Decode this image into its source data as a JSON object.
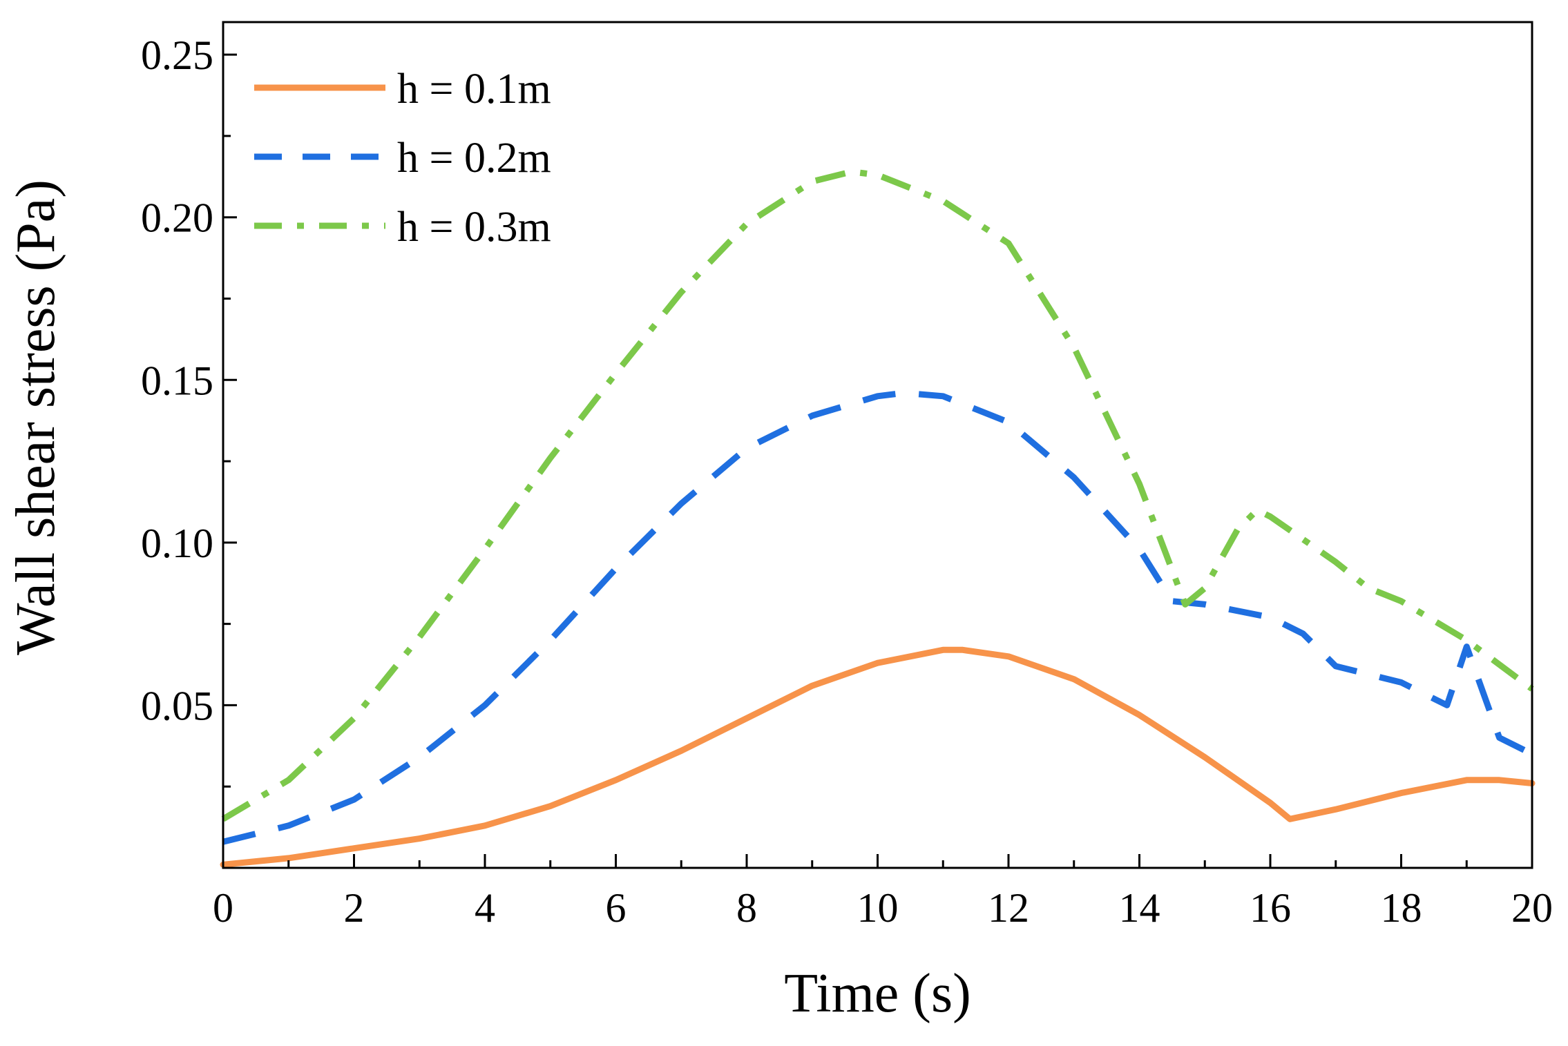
{
  "chart_data": {
    "type": "line",
    "title": "",
    "xlabel": "Time (s)",
    "ylabel": "Wall shear stress (Pa)",
    "xlim": [
      0,
      20
    ],
    "ylim": [
      0,
      0.26
    ],
    "xticks": [
      "0",
      "2",
      "4",
      "6",
      "8",
      "10",
      "12",
      "14",
      "16",
      "18",
      "20"
    ],
    "yticks": [
      "0.05",
      "0.10",
      "0.15",
      "0.20",
      "0.25"
    ],
    "grid": false,
    "legend_position": "top-left",
    "series": [
      {
        "name": "h = 0.1m",
        "color": "#f7934a",
        "dash": "solid",
        "x": [
          0,
          1,
          2,
          3,
          4,
          5,
          6,
          7,
          8,
          9,
          10,
          11,
          11.3,
          12,
          13,
          14,
          15,
          16,
          16.3,
          17,
          18,
          19,
          19.5,
          20
        ],
        "y": [
          0.001,
          0.003,
          0.006,
          0.009,
          0.013,
          0.019,
          0.027,
          0.036,
          0.046,
          0.056,
          0.063,
          0.067,
          0.067,
          0.065,
          0.058,
          0.047,
          0.034,
          0.02,
          0.015,
          0.018,
          0.023,
          0.027,
          0.027,
          0.026
        ]
      },
      {
        "name": "h = 0.2m",
        "color": "#1f6fe0",
        "dash": "dashed",
        "x": [
          0,
          1,
          2,
          3,
          4,
          5,
          6,
          7,
          8,
          9,
          10,
          10.4,
          11,
          12,
          13,
          14,
          14.5,
          15,
          16,
          16.5,
          17,
          18,
          18.7,
          19,
          19.5,
          20
        ],
        "y": [
          0.008,
          0.013,
          0.021,
          0.034,
          0.05,
          0.07,
          0.092,
          0.112,
          0.129,
          0.139,
          0.145,
          0.146,
          0.145,
          0.137,
          0.12,
          0.098,
          0.082,
          0.081,
          0.077,
          0.072,
          0.062,
          0.057,
          0.05,
          0.068,
          0.04,
          0.035
        ]
      },
      {
        "name": "h = 0.3m",
        "color": "#7cc84a",
        "dash": "dash-dot",
        "x": [
          0,
          1,
          2,
          3,
          4,
          5,
          6,
          7,
          8,
          9,
          9.6,
          10,
          11,
          12,
          13,
          14,
          14.7,
          15,
          15.5,
          15.8,
          16,
          16.5,
          17,
          17.5,
          18,
          19,
          20
        ],
        "y": [
          0.015,
          0.027,
          0.046,
          0.071,
          0.098,
          0.126,
          0.152,
          0.177,
          0.198,
          0.211,
          0.214,
          0.213,
          0.205,
          0.192,
          0.16,
          0.118,
          0.081,
          0.086,
          0.104,
          0.11,
          0.108,
          0.101,
          0.094,
          0.086,
          0.082,
          0.07,
          0.055
        ]
      }
    ]
  }
}
